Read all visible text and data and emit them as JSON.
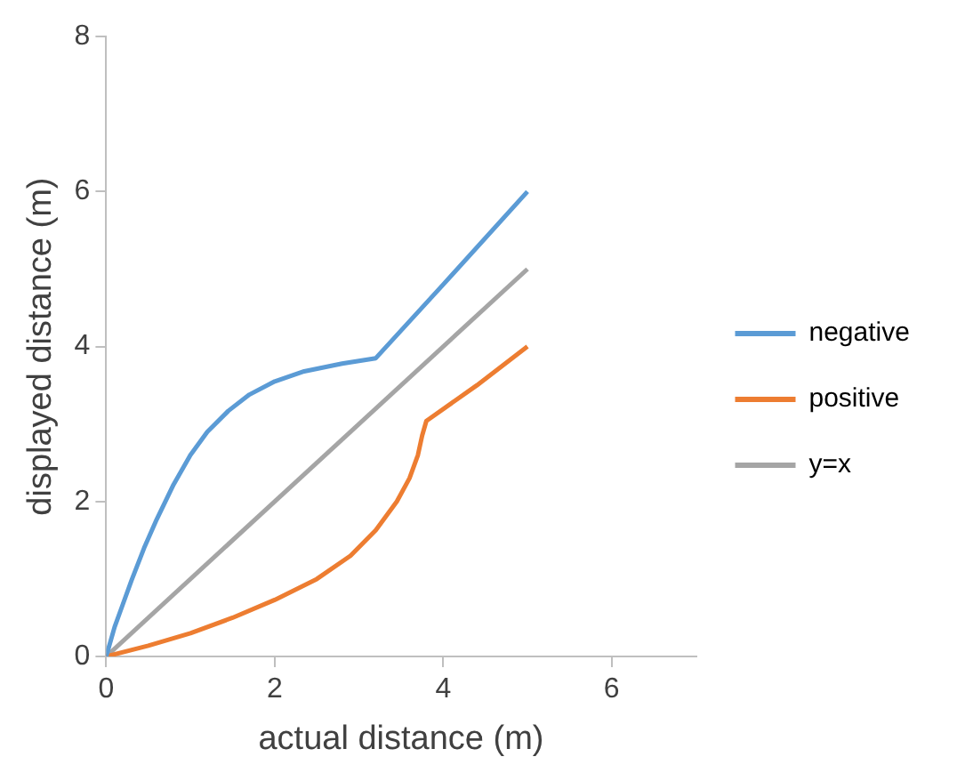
{
  "chart_data": {
    "type": "line",
    "xlabel": "actual distance (m)",
    "ylabel": "displayed distance (m)",
    "xlim": [
      0,
      7
    ],
    "xticks": [
      0,
      2,
      4,
      6
    ],
    "ylim": [
      0,
      8
    ],
    "yticks": [
      0,
      2,
      4,
      6,
      8
    ],
    "grid": false,
    "legend": "right",
    "marker": "none",
    "series": [
      {
        "name": "negative",
        "color": "#5b9bd5",
        "x": [
          0,
          0.1,
          0.2,
          0.3,
          0.45,
          0.6,
          0.8,
          1.0,
          1.2,
          1.45,
          1.7,
          2.0,
          2.35,
          2.8,
          3.2,
          4.0,
          5.0
        ],
        "values": [
          0,
          0.38,
          0.68,
          0.98,
          1.4,
          1.77,
          2.22,
          2.6,
          2.9,
          3.17,
          3.38,
          3.55,
          3.68,
          3.78,
          3.85,
          4.8,
          6.0
        ]
      },
      {
        "name": "positive",
        "color": "#ed7d31",
        "x": [
          0,
          0.5,
          1.0,
          1.5,
          2.0,
          2.5,
          2.9,
          3.2,
          3.45,
          3.6,
          3.7,
          3.75,
          3.8,
          4.4,
          5.0
        ],
        "values": [
          0,
          0.14,
          0.3,
          0.5,
          0.73,
          1.0,
          1.3,
          1.63,
          2.0,
          2.3,
          2.6,
          2.85,
          3.04,
          3.5,
          4.0
        ]
      },
      {
        "name": "y=x",
        "color": "#a5a5a5",
        "x": [
          0,
          5
        ],
        "values": [
          0,
          5
        ]
      }
    ]
  }
}
